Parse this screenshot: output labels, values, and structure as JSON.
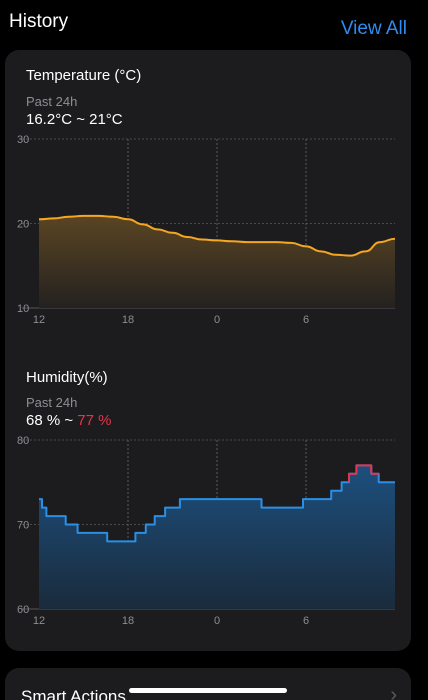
{
  "header": {
    "title": "History",
    "view_all_label": "View All"
  },
  "temperature": {
    "title": "Temperature (°C)",
    "period": "Past 24h",
    "range_text": "16.2°C ~ 21°C",
    "line_color": "#f5a623",
    "chart_data": {
      "type": "area",
      "title": "Temperature (°C)",
      "ylim": [
        10,
        30
      ],
      "y_ticks": [
        "30",
        "20",
        "10"
      ],
      "x_ticks": [
        "12",
        "18",
        "0",
        "6"
      ],
      "grid": true,
      "x": [
        12,
        13,
        14,
        15,
        16,
        17,
        18,
        19,
        20,
        21,
        22,
        23,
        24,
        25,
        26,
        27,
        28,
        29,
        30,
        31,
        32,
        33,
        34,
        35,
        36
      ],
      "values": [
        20.5,
        20.6,
        20.8,
        20.9,
        20.9,
        20.8,
        20.5,
        19.9,
        19.3,
        18.9,
        18.4,
        18.1,
        18.0,
        17.9,
        17.8,
        17.8,
        17.8,
        17.7,
        17.3,
        16.7,
        16.3,
        16.2,
        16.7,
        17.8,
        18.2
      ]
    }
  },
  "humidity": {
    "title": "Humidity(%)",
    "period": "Past 24h",
    "range_low": "68 % ~",
    "range_high": "77 %",
    "line_color": "#2b8fe6",
    "peak_color": "#e8324a",
    "chart_data": {
      "type": "area",
      "title": "Humidity(%)",
      "ylim": [
        60,
        80
      ],
      "y_ticks": [
        "80",
        "70",
        "60"
      ],
      "x_ticks": [
        "12",
        "18",
        "0",
        "6"
      ],
      "grid": true,
      "x": [
        12,
        12.2,
        12.5,
        13.0,
        13.8,
        14.6,
        15.5,
        16.6,
        17.8,
        18.5,
        19.2,
        19.8,
        20.5,
        21.5,
        22.8,
        24.0,
        25.5,
        27.0,
        28.4,
        29.8,
        30.9,
        31.7,
        32.4,
        32.9,
        33.4,
        33.9,
        34.4,
        34.9,
        35.5,
        36
      ],
      "values": [
        73,
        72,
        71,
        71,
        70,
        69,
        69,
        68,
        68,
        69,
        70,
        71,
        72,
        73,
        73,
        73,
        73,
        72,
        72,
        73,
        73,
        74,
        75,
        76,
        77,
        77,
        76,
        75,
        75,
        75
      ]
    }
  },
  "next_section": {
    "title": "Smart Actions"
  }
}
